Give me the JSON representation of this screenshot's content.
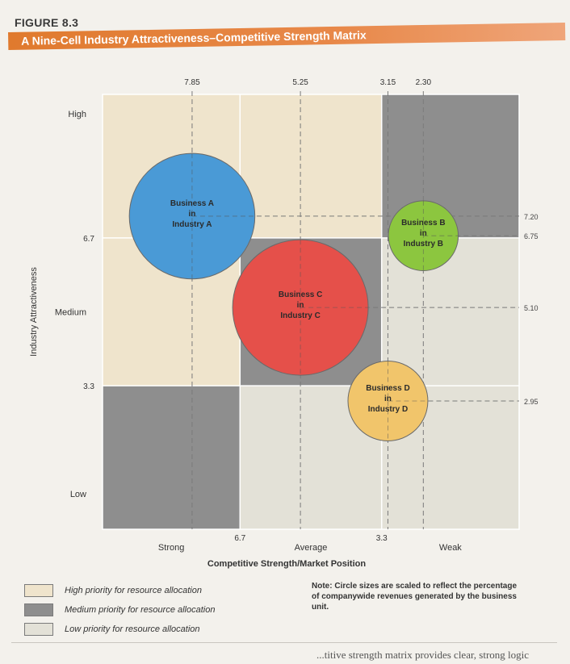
{
  "figure_label": "FIGURE 8.3",
  "figure_title": "A Nine-Cell Industry Attractiveness–Competitive Strength Matrix",
  "colors": {
    "high_priority": "#efe4cc",
    "medium_priority": "#8e8e8e",
    "low_priority": "#e3e1d7",
    "business_a": "#4a9ad6",
    "business_b": "#8cc63f",
    "business_c": "#e5504a",
    "business_d": "#f1c56b"
  },
  "chart_data": {
    "type": "scatter",
    "subtype": "bubble-matrix",
    "xlabel": "Competitive Strength/Market Position",
    "ylabel": "Industry Attractiveness",
    "x_range": [
      10,
      0
    ],
    "y_range": [
      0,
      10
    ],
    "x_dividers": [
      6.7,
      3.3
    ],
    "y_dividers": [
      6.7,
      3.3
    ],
    "x_category_labels": [
      "Strong",
      "Average",
      "Weak"
    ],
    "y_category_labels": [
      "High",
      "Medium",
      "Low"
    ],
    "x_divider_labels": [
      "6.7",
      "3.3"
    ],
    "y_divider_labels": [
      "6.7",
      "3.3"
    ],
    "cells": [
      [
        "high",
        "high",
        "medium"
      ],
      [
        "high",
        "medium",
        "low"
      ],
      [
        "medium",
        "low",
        "low"
      ]
    ],
    "bubbles": [
      {
        "label_lines": [
          "Business A",
          "in",
          "Industry A"
        ],
        "x": 7.85,
        "y": 7.2,
        "x_label": "7.85",
        "y_label": "7.20",
        "size": 4.2,
        "color": "business_a"
      },
      {
        "label_lines": [
          "Business B",
          "in",
          "Industry B"
        ],
        "x": 2.3,
        "y": 6.75,
        "x_label": "2.30",
        "y_label": "6.75",
        "size": 1.3,
        "color": "business_b"
      },
      {
        "label_lines": [
          "Business C",
          "in",
          "Industry C"
        ],
        "x": 5.25,
        "y": 5.1,
        "x_label": "5.25",
        "y_label": "5.10",
        "size": 4.9,
        "color": "business_c"
      },
      {
        "label_lines": [
          "Business D",
          "in",
          "Industry D"
        ],
        "x": 3.15,
        "y": 2.95,
        "x_label": "3.15",
        "y_label": "2.95",
        "size": 1.7,
        "color": "business_d"
      }
    ],
    "legend": [
      {
        "label": "High priority for resource allocation",
        "color": "high_priority"
      },
      {
        "label": "Medium priority for resource allocation",
        "color": "medium_priority"
      },
      {
        "label": "Low priority for resource allocation",
        "color": "low_priority"
      }
    ],
    "note_label": "Note:",
    "note_text": "Circle sizes are scaled to reflect the percentage of companywide revenues generated by the business unit."
  },
  "footer_text": "...titive strength matrix provides clear, strong logic"
}
